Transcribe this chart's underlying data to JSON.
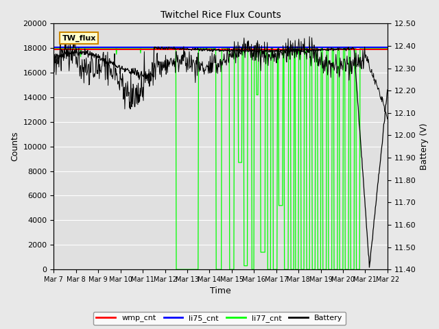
{
  "title": "Twitchel Rice Flux Counts",
  "xlabel": "Time",
  "ylabel_left": "Counts",
  "ylabel_right": "Battery (V)",
  "ylim_left": [
    0,
    20000
  ],
  "ylim_right": [
    11.4,
    12.5
  ],
  "yticks_left": [
    0,
    2000,
    4000,
    6000,
    8000,
    10000,
    12000,
    14000,
    16000,
    18000,
    20000
  ],
  "yticks_right": [
    11.4,
    11.5,
    11.6,
    11.7,
    11.8,
    11.9,
    12.0,
    12.1,
    12.2,
    12.3,
    12.4,
    12.5
  ],
  "xtick_labels": [
    "Mar 7",
    "Mar 8",
    "Mar 9",
    "Mar 10",
    "Mar 11",
    "Mar 12",
    "Mar 13",
    "Mar 14",
    "Mar 15",
    "Mar 16",
    "Mar 17",
    "Mar 18",
    "Mar 19",
    "Mar 20",
    "Mar 21",
    "Mar 22"
  ],
  "wmp_cnt_value": 17900,
  "li75_cnt_value": 18050,
  "legend_box_label": "TW_flux",
  "fig_color": "#e8e8e8",
  "plot_bg_color": "#e0e0e0",
  "grid_color": "#ffffff",
  "wmp_color": "#ff0000",
  "li75_color": "#0000ff",
  "li77_color": "#00ff00",
  "battery_color": "#000000"
}
